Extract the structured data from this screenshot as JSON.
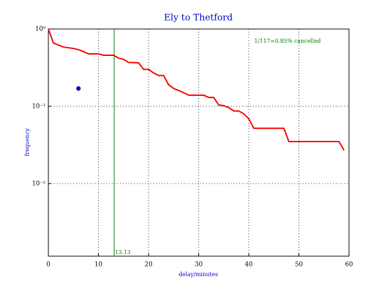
{
  "chart_data": {
    "type": "line",
    "title": "Ely to Thetford",
    "xlabel": "delay/minutes",
    "ylabel": "frequency",
    "x": [
      0,
      1,
      2,
      3,
      5,
      6,
      7,
      8,
      10,
      11,
      13,
      14,
      15,
      16,
      18,
      19,
      20,
      21,
      22,
      23,
      24,
      25,
      26,
      27,
      28,
      31,
      32,
      33,
      34,
      35,
      36,
      37,
      38,
      39,
      40,
      41,
      47,
      48,
      58,
      59
    ],
    "series": [
      {
        "color": "#ff0000",
        "values": [
          1.0,
          0.66,
          0.62,
          0.585,
          0.56,
          0.54,
          0.51,
          0.477,
          0.477,
          0.458,
          0.458,
          0.42,
          0.405,
          0.37,
          0.365,
          0.3,
          0.3,
          0.27,
          0.25,
          0.25,
          0.19,
          0.17,
          0.16,
          0.15,
          0.139,
          0.139,
          0.13,
          0.13,
          0.104,
          0.102,
          0.096,
          0.087,
          0.087,
          0.08,
          0.069,
          0.052,
          0.052,
          0.035,
          0.035,
          0.027
        ]
      }
    ],
    "points": [
      {
        "x": 6,
        "y": 0.17,
        "color": "#0000ff"
      }
    ],
    "vline": {
      "x": 13.13,
      "label": "13.13",
      "color": "#008000"
    },
    "annotation": {
      "text": "1/117=0.85% cancelled",
      "color": "#008000"
    },
    "xlim": [
      0,
      60
    ],
    "xticks": [
      0,
      10,
      20,
      30,
      40,
      50,
      60
    ],
    "ylim": [
      0.00115,
      1
    ],
    "log_y": true,
    "yticks": [
      {
        "value": 1,
        "label": "10⁰"
      },
      {
        "value": 0.1,
        "label": "10⁻¹"
      },
      {
        "value": 0.01,
        "label": "10⁻²"
      }
    ],
    "grid": true
  }
}
